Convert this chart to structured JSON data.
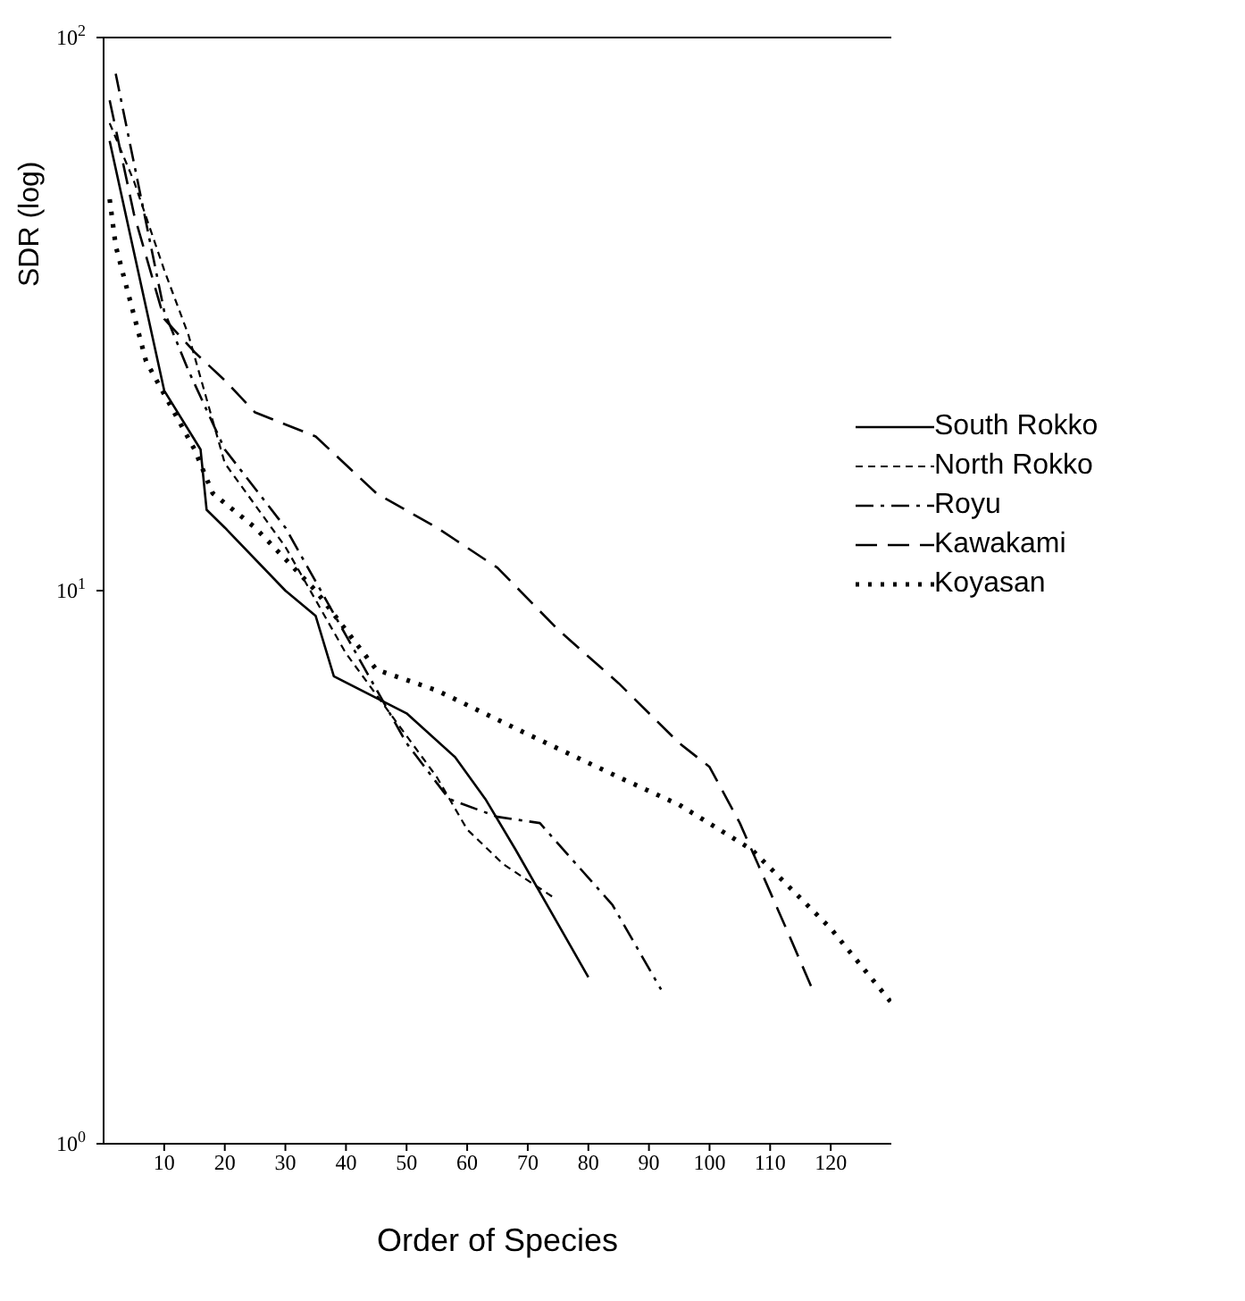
{
  "chart_data": {
    "type": "line",
    "xlabel": "Order of Species",
    "ylabel": "SDR (log)",
    "log": "y",
    "xlim": [
      0,
      130
    ],
    "xticks": [
      10,
      20,
      30,
      40,
      50,
      60,
      70,
      80,
      90,
      100,
      110,
      120
    ],
    "ylim": [
      1,
      100
    ],
    "yticks": [
      {
        "value": 1,
        "label": "10$^{0}$"
      },
      {
        "value": 10,
        "label": "10$^{1}$"
      },
      {
        "value": 100,
        "label": "10$^{2}$"
      }
    ],
    "legend": "top right",
    "marker": "none",
    "series": [
      {
        "name": "South Rokko",
        "color": "#000000",
        "line_style": "solid",
        "x": [
          1,
          10,
          16,
          17,
          20,
          30,
          35,
          38,
          50,
          58,
          63,
          68,
          80
        ],
        "values": [
          65,
          23,
          18,
          14,
          13,
          10,
          9,
          7,
          6,
          5,
          4.2,
          3.4,
          2
        ]
      },
      {
        "name": "North Rokko",
        "color": "#000000",
        "line_style": "dashed",
        "x": [
          1,
          5,
          10,
          14,
          20,
          30,
          40,
          55,
          60,
          66,
          74
        ],
        "values": [
          70,
          55,
          38,
          29,
          17,
          12,
          7.7,
          4.6,
          3.7,
          3.2,
          2.8
        ]
      },
      {
        "name": "Royu",
        "color": "#000000",
        "line_style": "dashdot",
        "x": [
          2,
          10,
          14,
          20,
          30,
          40,
          50,
          57,
          65,
          72,
          84,
          92
        ],
        "values": [
          86,
          32,
          25,
          18,
          13,
          8.3,
          5.3,
          4.2,
          3.9,
          3.8,
          2.7,
          1.9
        ]
      },
      {
        "name": "Kawakami",
        "color": "#000000",
        "line_style": "longdash",
        "x": [
          1,
          5,
          10,
          15,
          20,
          25,
          35,
          45,
          55,
          65,
          75,
          85,
          95,
          100,
          105,
          108,
          113,
          117
        ],
        "values": [
          77,
          48,
          31,
          27,
          24,
          21,
          19,
          15,
          13,
          11,
          8.5,
          6.8,
          5.3,
          4.8,
          3.8,
          3.2,
          2.4,
          1.9
        ]
      },
      {
        "name": "Koyasan",
        "color": "#000000",
        "line_style": "dotted",
        "x": [
          1,
          2,
          7,
          15,
          18,
          25,
          35,
          45,
          55,
          70,
          85,
          95,
          107,
          120,
          130
        ],
        "values": [
          51,
          42,
          26,
          18,
          15,
          13,
          10,
          7.2,
          6.6,
          5.5,
          4.6,
          4.1,
          3.4,
          2.45,
          1.8
        ]
      }
    ]
  }
}
